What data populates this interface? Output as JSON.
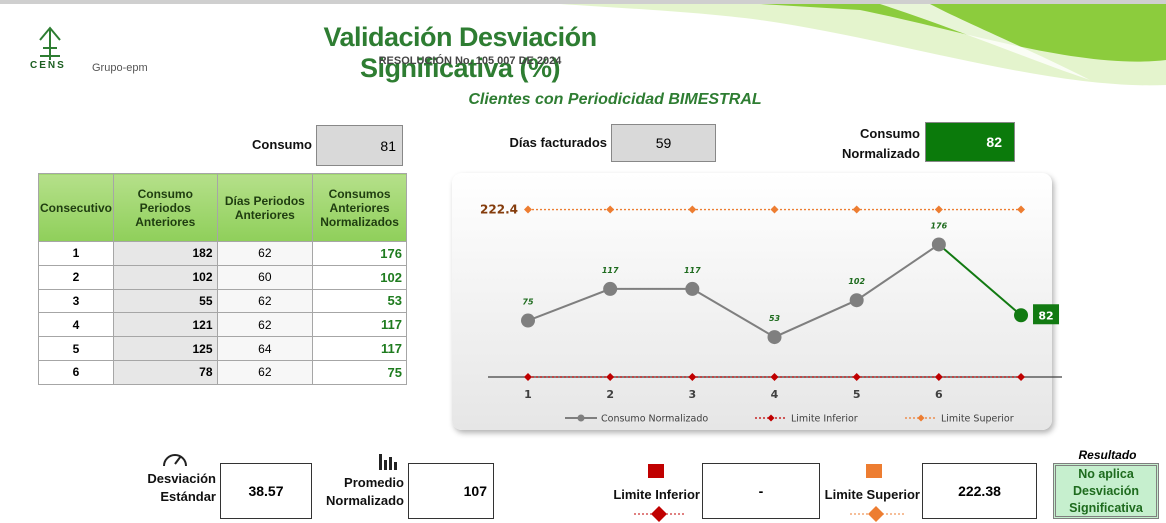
{
  "header": {
    "title": "Validación Desviación Significativa (%)",
    "subtitle": "RESOLUCIÓN No. 105 007 DE 2024",
    "logo": "CENS",
    "group": "Grupo-epm",
    "subheading": "Clientes con Periodicidad BIMESTRAL"
  },
  "fields": [
    {
      "label": "Consumo",
      "value": 81
    },
    {
      "label": "Días facturados",
      "value": 59
    },
    {
      "label": "Consumo Normalizado",
      "value": 82
    }
  ],
  "table": {
    "headers": [
      "Consecutivo",
      "Consumo Periodos Anteriores",
      "Días Periodos Anteriores",
      "Consumos Anteriores Normalizados"
    ],
    "rows": [
      [
        1,
        182,
        62,
        176
      ],
      [
        2,
        102,
        60,
        102
      ],
      [
        3,
        55,
        62,
        53
      ],
      [
        4,
        121,
        62,
        117
      ],
      [
        5,
        125,
        64,
        117
      ],
      [
        6,
        78,
        62,
        75
      ]
    ]
  },
  "chart_data": {
    "type": "line",
    "categories": [
      "1",
      "2",
      "3",
      "4",
      "5",
      "6",
      null
    ],
    "series": [
      {
        "name": "Consumo Normalizado",
        "color": "#7f7f7f",
        "highlight_color": "#127a12",
        "values": [
          75,
          117,
          117,
          53,
          102,
          176,
          82
        ]
      },
      {
        "name": "Limite Inferior",
        "color": "#c00000",
        "values": [
          0,
          0,
          0,
          0,
          0,
          0,
          0
        ]
      },
      {
        "name": "Limite Superior",
        "color": "#ed7d31",
        "values": [
          222.4,
          222.4,
          222.4,
          222.4,
          222.4,
          222.4,
          222.4
        ]
      }
    ],
    "ylim": [
      0,
      255
    ]
  },
  "summary": [
    {
      "label": "Desviación Estándar",
      "value": 38.57
    },
    {
      "label": "Promedio Normalizado",
      "value": 107
    },
    {
      "label": "Limite Inferior",
      "value": "-"
    },
    {
      "label": "Limite Superior",
      "value": 222.38
    }
  ],
  "result": {
    "label": "Resultado",
    "value": "No aplica Desviación Significativa"
  }
}
